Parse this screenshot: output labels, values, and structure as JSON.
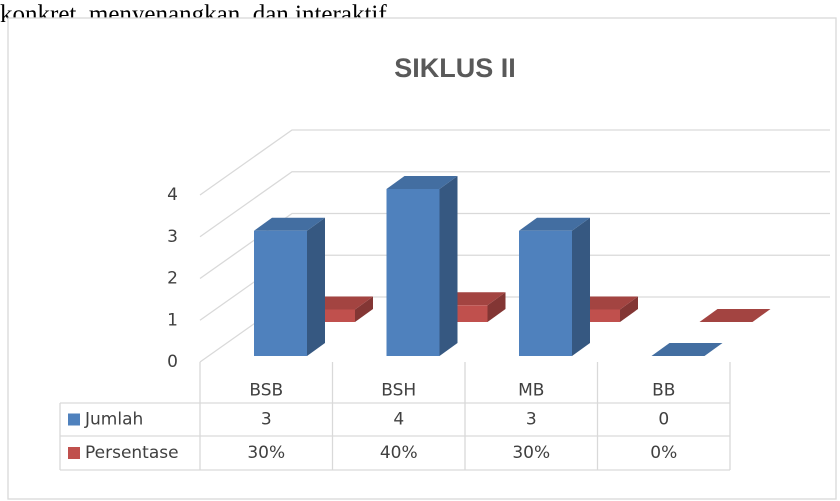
{
  "page_text": "konkret, menyenangkan, dan interaktif.",
  "chart_data": {
    "type": "bar3d",
    "title": "SIKLUS II",
    "categories": [
      "BSB",
      "BSH",
      "MB",
      "BB"
    ],
    "series": [
      {
        "name": "Jumlah",
        "color": "#4f81bd",
        "values": [
          3,
          4,
          3,
          0
        ]
      },
      {
        "name": "Persentase",
        "color": "#c0504d",
        "values": [
          0.3,
          0.4,
          0.3,
          0
        ],
        "value_labels": [
          "30%",
          "40%",
          "30%",
          "0%"
        ]
      }
    ],
    "ylim": [
      0,
      4
    ],
    "yticks": [
      0,
      1,
      2,
      3,
      4
    ],
    "grid": true,
    "data_table": true
  }
}
